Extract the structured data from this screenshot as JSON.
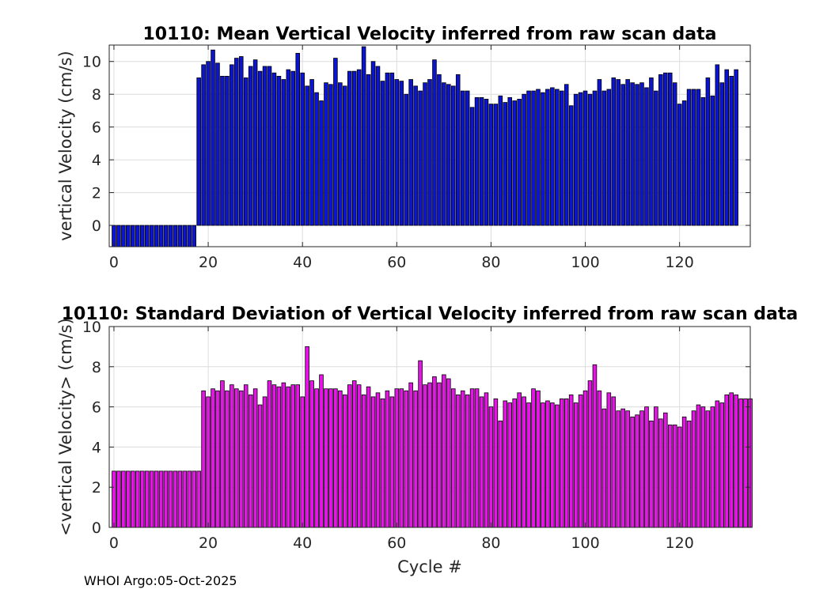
{
  "chart_data": [
    {
      "type": "bar",
      "title": "10110: Mean Vertical Velocity inferred from raw scan data",
      "xlabel": "",
      "ylabel": "vertical Velocity (cm/s)",
      "xlim": [
        -1,
        135
      ],
      "ylim": [
        -1.3,
        11
      ],
      "xticks": [
        0,
        20,
        40,
        60,
        80,
        100,
        120
      ],
      "yticks": [
        0,
        2,
        4,
        6,
        8,
        10
      ],
      "grid": true,
      "bar_color": "#0a14d2",
      "series": [
        {
          "name": "mean vertical velocity",
          "x_start": 0,
          "values": [
            -1.3,
            -1.3,
            -1.3,
            -1.3,
            -1.3,
            -1.3,
            -1.3,
            -1.3,
            -1.3,
            -1.3,
            -1.3,
            -1.3,
            -1.3,
            -1.3,
            -1.3,
            -1.3,
            -1.3,
            -1.3,
            9.0,
            9.8,
            10.0,
            10.7,
            9.9,
            9.1,
            9.1,
            9.8,
            10.2,
            10.3,
            9.0,
            9.7,
            10.1,
            9.4,
            9.7,
            9.7,
            9.3,
            9.1,
            8.9,
            9.5,
            9.4,
            10.5,
            9.3,
            8.5,
            8.9,
            8.1,
            7.6,
            8.7,
            8.6,
            10.2,
            8.7,
            8.5,
            9.4,
            9.4,
            9.5,
            10.9,
            9.2,
            10.0,
            9.7,
            8.8,
            9.3,
            9.3,
            8.9,
            8.8,
            8.0,
            8.9,
            8.5,
            8.2,
            8.7,
            8.9,
            10.1,
            9.2,
            8.7,
            8.6,
            8.5,
            9.2,
            8.2,
            8.2,
            7.2,
            7.8,
            7.8,
            7.7,
            7.4,
            7.4,
            7.9,
            7.5,
            7.8,
            7.6,
            7.7,
            8.0,
            8.2,
            8.2,
            8.3,
            8.1,
            8.3,
            8.4,
            8.3,
            8.2,
            8.6,
            7.3,
            8.0,
            8.1,
            8.2,
            8.0,
            8.2,
            8.9,
            8.2,
            8.3,
            9.0,
            8.9,
            8.6,
            8.9,
            8.7,
            8.6,
            8.7,
            8.4,
            9.0,
            8.2,
            9.2,
            9.3,
            9.3,
            8.7,
            7.4,
            7.6,
            8.3,
            8.3,
            8.3,
            7.8,
            9.0,
            7.9,
            9.8,
            8.7,
            9.5,
            9.1,
            9.5
          ]
        }
      ]
    },
    {
      "type": "bar",
      "title": "10110: Standard Deviation of Vertical Velocity inferred from raw scan data",
      "xlabel": "Cycle #",
      "ylabel": "<vertical Velocity> (cm/s)",
      "xlim": [
        -1,
        135
      ],
      "ylim": [
        0,
        10
      ],
      "xticks": [
        0,
        20,
        40,
        60,
        80,
        100,
        120
      ],
      "yticks": [
        0,
        2,
        4,
        6,
        8,
        10
      ],
      "grid": true,
      "bar_color": "#e614e6",
      "series": [
        {
          "name": "std of vertical velocity",
          "x_start": 0,
          "values": [
            2.8,
            2.8,
            2.8,
            2.8,
            2.8,
            2.8,
            2.8,
            2.8,
            2.8,
            2.8,
            2.8,
            2.8,
            2.8,
            2.8,
            2.8,
            2.8,
            2.8,
            2.8,
            2.8,
            6.8,
            6.5,
            6.9,
            6.8,
            7.3,
            6.8,
            7.1,
            6.9,
            6.8,
            7.1,
            6.6,
            6.9,
            6.1,
            6.5,
            7.3,
            7.1,
            7.0,
            7.2,
            7.0,
            7.1,
            7.1,
            6.5,
            9.0,
            7.3,
            6.9,
            7.6,
            6.9,
            6.9,
            6.9,
            6.8,
            6.6,
            7.1,
            7.3,
            7.1,
            6.6,
            7.0,
            6.5,
            6.7,
            6.4,
            6.8,
            6.5,
            6.9,
            6.9,
            6.8,
            7.2,
            6.8,
            8.3,
            7.1,
            7.2,
            7.5,
            7.2,
            7.6,
            7.4,
            6.9,
            6.6,
            6.8,
            6.6,
            6.9,
            6.9,
            6.5,
            6.7,
            6.0,
            6.4,
            5.3,
            6.3,
            6.2,
            6.4,
            6.7,
            6.5,
            6.2,
            6.9,
            6.8,
            6.2,
            6.3,
            6.2,
            6.1,
            6.4,
            6.4,
            6.6,
            6.2,
            6.6,
            6.8,
            7.3,
            8.1,
            6.8,
            5.9,
            6.7,
            6.5,
            5.8,
            5.9,
            5.8,
            5.5,
            5.6,
            5.8,
            6.0,
            5.3,
            6.0,
            5.4,
            5.7,
            5.1,
            5.1,
            5.0,
            5.5,
            5.3,
            5.8,
            6.1,
            6.0,
            5.8,
            6.0,
            6.3,
            6.2,
            6.6,
            6.7,
            6.6,
            6.4,
            6.4,
            6.4
          ]
        }
      ]
    }
  ],
  "footer": "WHOI Argo:05-Oct-2025"
}
